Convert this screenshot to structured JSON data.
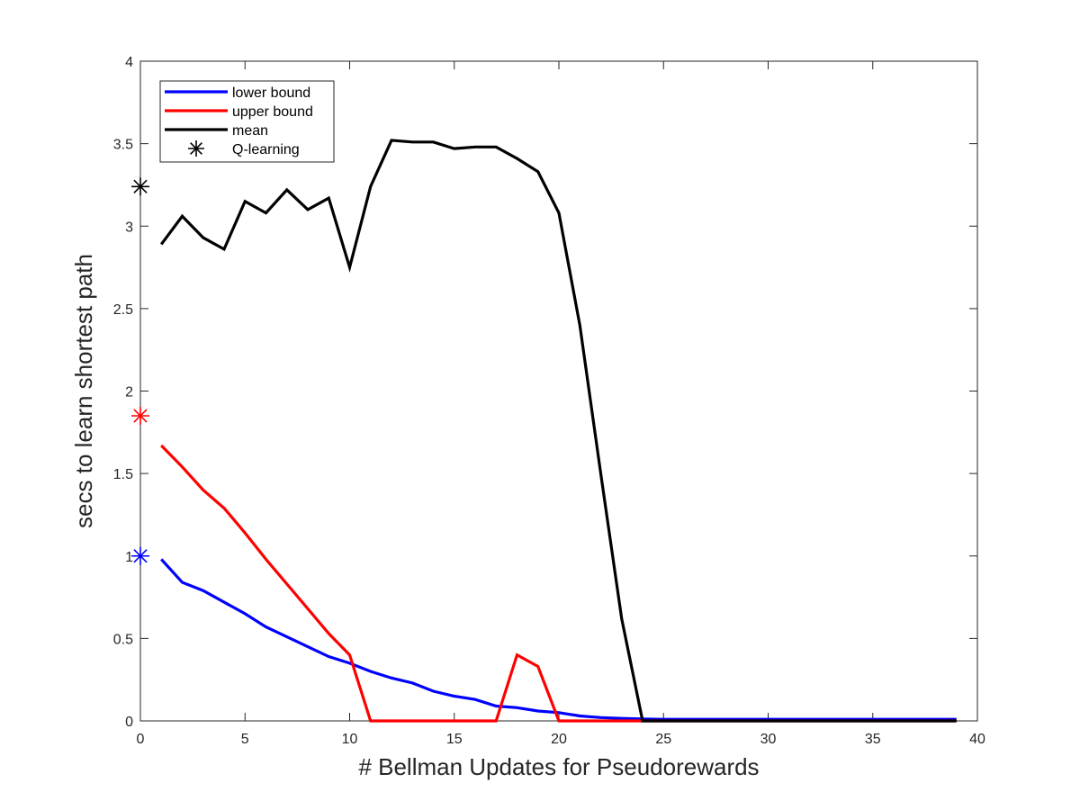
{
  "chart_data": {
    "type": "line",
    "title": "",
    "xlabel": "# Bellman Updates for Pseudorewards",
    "ylabel": "secs to learn shortest path",
    "xlim": [
      0,
      40
    ],
    "ylim": [
      0,
      4
    ],
    "x_ticks": [
      0,
      5,
      10,
      15,
      20,
      25,
      30,
      35,
      40
    ],
    "y_ticks": [
      0,
      0.5,
      1,
      1.5,
      2,
      2.5,
      3,
      3.5,
      4
    ],
    "x_tick_labels": [
      "0",
      "5",
      "10",
      "15",
      "20",
      "25",
      "30",
      "35",
      "40"
    ],
    "y_tick_labels": [
      "0",
      "0.5",
      "1",
      "1.5",
      "2",
      "2.5",
      "3",
      "3.5",
      "4"
    ],
    "grid": false,
    "legend_position": "top-left",
    "x": [
      1,
      2,
      3,
      4,
      5,
      6,
      7,
      8,
      9,
      10,
      11,
      12,
      13,
      14,
      15,
      16,
      17,
      18,
      19,
      20,
      21,
      22,
      23,
      24,
      25,
      26,
      27,
      28,
      29,
      30,
      31,
      32,
      33,
      34,
      35,
      36,
      37,
      38,
      39
    ],
    "series": [
      {
        "name": "lower bound",
        "color": "#0000ff",
        "values": [
          0.98,
          0.84,
          0.79,
          0.72,
          0.65,
          0.57,
          0.51,
          0.45,
          0.39,
          0.35,
          0.3,
          0.26,
          0.23,
          0.18,
          0.15,
          0.13,
          0.09,
          0.08,
          0.06,
          0.05,
          0.03,
          0.02,
          0.015,
          0.012,
          0.01,
          0.01,
          0.01,
          0.01,
          0.01,
          0.01,
          0.01,
          0.01,
          0.01,
          0.01,
          0.01,
          0.01,
          0.01,
          0.01,
          0.01
        ]
      },
      {
        "name": "upper bound",
        "color": "#ff0000",
        "values": [
          1.67,
          1.54,
          1.4,
          1.29,
          1.14,
          0.98,
          0.83,
          0.68,
          0.53,
          0.4,
          0.0,
          0.0,
          0.0,
          0.0,
          0.0,
          0.0,
          0.0,
          0.4,
          0.33,
          0.0,
          0.0,
          0.0,
          0.0,
          0.0,
          0.0,
          0.0,
          0.0,
          0.0,
          0.0,
          0.0,
          0.0,
          0.0,
          0.0,
          0.0,
          0.0,
          0.0,
          0.0,
          0.0,
          0.0
        ]
      },
      {
        "name": "mean",
        "color": "#000000",
        "values": [
          2.89,
          3.06,
          2.93,
          2.86,
          3.15,
          3.08,
          3.22,
          3.1,
          3.17,
          2.75,
          3.24,
          3.52,
          3.51,
          3.51,
          3.47,
          3.48,
          3.48,
          3.41,
          3.33,
          3.08,
          2.4,
          1.5,
          0.62,
          0.0,
          0.0,
          0.0,
          0.0,
          0.0,
          0.0,
          0.0,
          0.0,
          0.0,
          0.0,
          0.0,
          0.0,
          0.0,
          0.0,
          0.0,
          0.0
        ]
      }
    ],
    "q_learning": {
      "name": "Q-learning",
      "marker": "asterisk",
      "points": [
        {
          "x": 0,
          "y": 3.24,
          "color": "#000000"
        },
        {
          "x": 0,
          "y": 1.85,
          "color": "#ff0000"
        },
        {
          "x": 0,
          "y": 1.0,
          "color": "#0000ff"
        }
      ]
    }
  }
}
